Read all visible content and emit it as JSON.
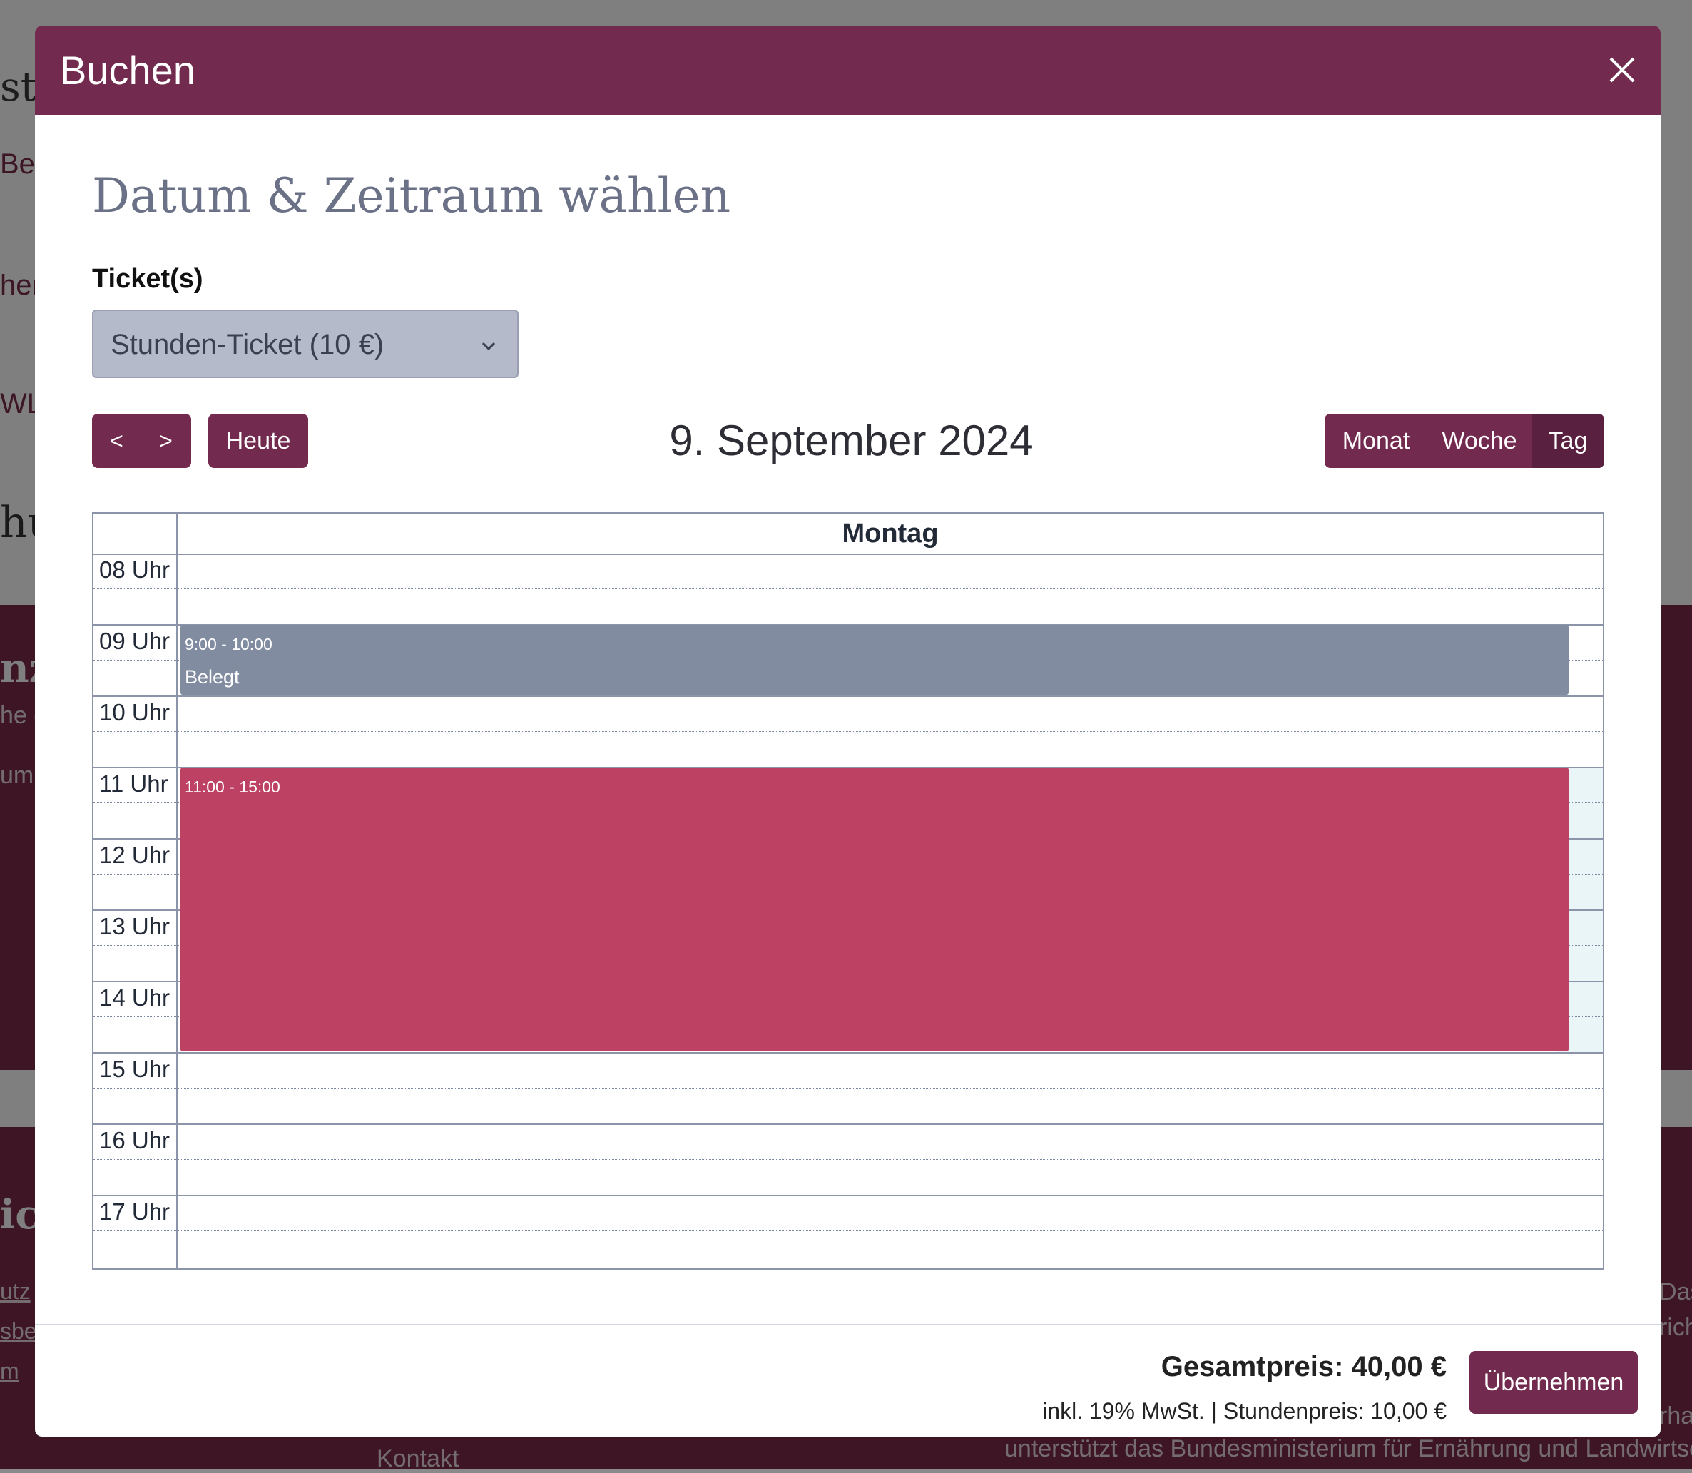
{
  "background": {
    "fragments": [
      "st",
      "Be",
      "her",
      "WL",
      "hu",
      "nz",
      "he d",
      "um",
      "ic",
      "utz",
      "sbe",
      "m",
      "Kontakt",
      "Das",
      "rich",
      "rhal",
      "unterstützt das Bundesministerium für Ernährung und Landwirtschaf"
    ]
  },
  "modal": {
    "title": "Buchen",
    "close_icon": "close-icon",
    "heading": "Datum & Zeitraum wählen",
    "ticket_label": "Ticket(s)",
    "ticket_value": "Stunden-Ticket (10 €)",
    "toolbar": {
      "prev_label": "<",
      "next_label": ">",
      "today_label": "Heute",
      "date_title": "9. September 2024",
      "views": [
        "Monat",
        "Woche",
        "Tag"
      ],
      "active_view": "Tag"
    },
    "calendar": {
      "day_header": "Montag",
      "hours": [
        "08 Uhr",
        "09 Uhr",
        "10 Uhr",
        "11 Uhr",
        "12 Uhr",
        "13 Uhr",
        "14 Uhr",
        "15 Uhr",
        "16 Uhr",
        "17 Uhr"
      ],
      "events": [
        {
          "time": "9:00 - 10:00",
          "title": "Belegt",
          "color": "#818ca1"
        },
        {
          "time": "11:00 - 15:00",
          "title": "",
          "color": "#bd4162"
        }
      ]
    },
    "footer": {
      "total": "Gesamtpreis: 40,00 €",
      "subtotal": "inkl. 19% MwSt. | Stundenpreis: 10,00 €",
      "apply_label": "Übernehmen"
    }
  },
  "colors": {
    "primary": "#722b4e",
    "busy_event": "#818ca1",
    "selected_event": "#bd4162"
  }
}
